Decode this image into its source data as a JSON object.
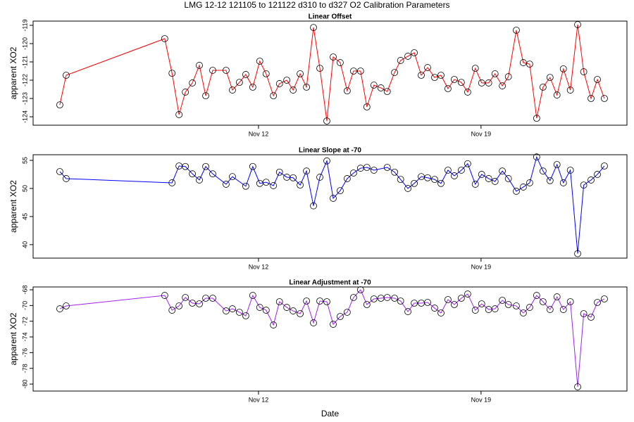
{
  "title": "LMG   12-12    121105 to 121122    d310 to d327   O2 Calibration Parameters",
  "chart_data": [
    {
      "type": "line",
      "title": "Linear Offset",
      "ylabel": "apparent XO2",
      "xlim": [
        4.91,
        23.59
      ],
      "xticks": [
        {
          "value": 12,
          "label": "Nov 12"
        },
        {
          "value": 19,
          "label": "Nov 19"
        }
      ],
      "ylim": [
        -124.46,
        -118.77
      ],
      "yticks": [
        -119,
        -120,
        -121,
        -122,
        -123,
        -124
      ],
      "x": [
        5.75,
        5.95,
        9.05,
        9.28,
        9.5,
        9.7,
        9.92,
        10.14,
        10.34,
        10.56,
        10.98,
        11.18,
        11.4,
        11.6,
        11.82,
        12.04,
        12.24,
        12.47,
        12.66,
        12.89,
        13.09,
        13.31,
        13.51,
        13.73,
        13.93,
        14.15,
        14.35,
        14.57,
        14.79,
        14.99,
        15.21,
        15.41,
        15.63,
        15.85,
        16.05,
        16.28,
        16.47,
        16.7,
        16.9,
        17.12,
        17.32,
        17.54,
        17.74,
        17.96,
        18.16,
        18.38,
        18.58,
        18.82,
        19.02,
        19.24,
        19.44,
        19.67,
        19.86,
        20.11,
        20.33,
        20.53,
        20.75,
        20.95,
        21.17,
        21.39,
        21.59,
        21.81,
        22.04,
        22.23,
        22.46,
        22.66,
        22.88
      ],
      "series": [
        {
          "color": "#ff0000",
          "values": [
            -123.35,
            -121.73,
            -119.73,
            -121.62,
            -123.88,
            -122.65,
            -122.15,
            -121.19,
            -122.85,
            -121.46,
            -121.46,
            -122.54,
            -122.12,
            -121.69,
            -122.38,
            -120.96,
            -121.65,
            -122.85,
            -122.19,
            -122.0,
            -122.54,
            -121.65,
            -122.38,
            -119.12,
            -121.35,
            -124.23,
            -120.73,
            -121.04,
            -122.58,
            -121.5,
            -121.5,
            -123.46,
            -122.27,
            -122.42,
            -122.62,
            -121.58,
            -120.92,
            -120.69,
            -120.5,
            -121.73,
            -121.31,
            -121.85,
            -121.73,
            -122.46,
            -121.96,
            -122.12,
            -122.65,
            -121.35,
            -122.15,
            -122.15,
            -121.65,
            -122.31,
            -121.81,
            -119.27,
            -121.04,
            -121.12,
            -124.08,
            -122.38,
            -121.85,
            -122.81,
            -121.38,
            -122.54,
            -118.96,
            -121.54,
            -123.0,
            -121.96,
            -123.0
          ]
        }
      ]
    },
    {
      "type": "line",
      "title": "Linear Slope at -70",
      "ylabel": "apparent XO2",
      "xlim": [
        4.91,
        23.59
      ],
      "xticks": [
        {
          "value": 12,
          "label": "Nov 12"
        },
        {
          "value": 19,
          "label": "Nov 19"
        }
      ],
      "ylim": [
        37.6,
        56.0
      ],
      "yticks": [
        40,
        45,
        50,
        55
      ],
      "x": [
        5.75,
        5.95,
        9.28,
        9.5,
        9.7,
        9.92,
        10.14,
        10.34,
        10.56,
        10.98,
        11.18,
        11.6,
        11.82,
        12.04,
        12.24,
        12.47,
        12.66,
        12.89,
        13.09,
        13.31,
        13.51,
        13.73,
        13.93,
        14.15,
        14.35,
        14.57,
        14.79,
        14.99,
        15.21,
        15.41,
        15.63,
        16.05,
        16.28,
        16.47,
        16.7,
        16.9,
        17.12,
        17.32,
        17.54,
        17.74,
        17.96,
        18.16,
        18.38,
        18.58,
        18.82,
        19.02,
        19.24,
        19.44,
        19.67,
        19.86,
        20.11,
        20.33,
        20.53,
        20.75,
        20.95,
        21.17,
        21.39,
        21.59,
        21.81,
        22.04,
        22.23,
        22.46,
        22.66,
        22.88
      ],
      "series": [
        {
          "color": "#0000ff",
          "values": [
            53.0,
            51.75,
            51.0,
            54.0,
            53.9,
            52.6,
            51.5,
            53.9,
            52.6,
            50.75,
            52.1,
            50.4,
            53.9,
            50.9,
            51.1,
            50.5,
            52.9,
            52.0,
            51.9,
            50.6,
            53.1,
            46.9,
            52.0,
            54.9,
            48.25,
            49.6,
            51.75,
            52.75,
            53.6,
            53.75,
            53.25,
            53.75,
            52.9,
            51.6,
            50.0,
            50.9,
            52.1,
            51.9,
            51.6,
            50.9,
            53.25,
            52.25,
            53.25,
            54.4,
            50.75,
            52.5,
            51.75,
            51.25,
            53.1,
            51.75,
            49.5,
            50.25,
            51.0,
            55.6,
            53.1,
            51.4,
            54.25,
            51.0,
            53.25,
            38.4,
            50.6,
            51.5,
            52.5,
            54.0
          ]
        }
      ]
    },
    {
      "type": "line",
      "title": "Linear Adjustment at -70",
      "ylabel": "apparent XO2",
      "xlabel": "Date",
      "xlim": [
        4.91,
        23.59
      ],
      "xticks": [
        {
          "value": 12,
          "label": "Nov 12"
        },
        {
          "value": 19,
          "label": "Nov 19"
        }
      ],
      "ylim": [
        -80.89,
        -67.64
      ],
      "yticks": [
        -68,
        -70,
        -72,
        -74,
        -76,
        -78,
        -80
      ],
      "x": [
        5.75,
        5.95,
        9.05,
        9.28,
        9.5,
        9.7,
        9.92,
        10.14,
        10.34,
        10.56,
        10.98,
        11.18,
        11.4,
        11.6,
        11.82,
        12.04,
        12.24,
        12.47,
        12.66,
        12.89,
        13.09,
        13.31,
        13.51,
        13.73,
        13.93,
        14.15,
        14.35,
        14.57,
        14.79,
        14.99,
        15.21,
        15.41,
        15.63,
        15.85,
        16.05,
        16.28,
        16.47,
        16.7,
        16.9,
        17.12,
        17.32,
        17.54,
        17.74,
        17.96,
        18.16,
        18.38,
        18.58,
        18.82,
        19.02,
        19.24,
        19.44,
        19.67,
        19.86,
        20.11,
        20.33,
        20.53,
        20.75,
        20.95,
        21.17,
        21.39,
        21.59,
        21.81,
        22.04,
        22.23,
        22.46,
        22.66,
        22.88
      ],
      "series": [
        {
          "color": "#a020f0",
          "values": [
            -70.42,
            -70.06,
            -68.72,
            -70.6,
            -70.06,
            -68.98,
            -69.7,
            -69.79,
            -69.07,
            -69.07,
            -70.69,
            -70.42,
            -70.86,
            -71.31,
            -68.72,
            -70.24,
            -70.6,
            -72.48,
            -69.52,
            -70.24,
            -70.69,
            -71.04,
            -69.43,
            -72.21,
            -69.43,
            -69.52,
            -72.39,
            -71.4,
            -70.86,
            -68.98,
            -68.0,
            -69.88,
            -69.16,
            -69.07,
            -68.98,
            -69.07,
            -69.43,
            -70.78,
            -69.7,
            -69.7,
            -69.61,
            -70.33,
            -70.95,
            -69.25,
            -69.88,
            -69.07,
            -68.54,
            -70.6,
            -69.79,
            -70.51,
            -70.42,
            -69.34,
            -69.88,
            -70.06,
            -70.95,
            -70.24,
            -68.72,
            -69.52,
            -70.51,
            -68.9,
            -70.51,
            -69.52,
            -80.35,
            -71.04,
            -71.49,
            -69.61,
            -69.16
          ]
        }
      ]
    }
  ]
}
